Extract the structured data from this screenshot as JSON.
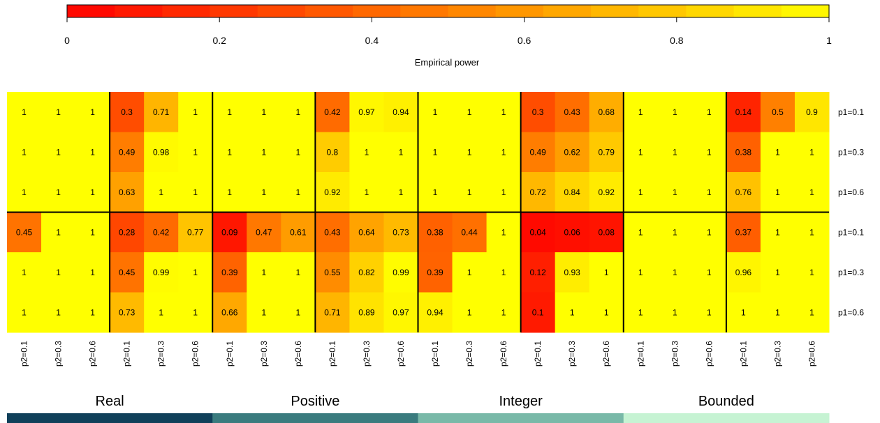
{
  "chart_data": {
    "type": "heatmap",
    "colorbar": {
      "label": "Empirical power",
      "ticks": [
        "0",
        "0.2",
        "0.4",
        "0.6",
        "0.8",
        "1"
      ],
      "range": [
        0,
        1
      ],
      "colors": [
        "#ff0000",
        "#ffff00"
      ]
    },
    "row_labels": [
      "p1=0.1",
      "p1=0.3",
      "p1=0.6",
      "p1=0.1",
      "p1=0.3",
      "p1=0.6"
    ],
    "column_labels": [
      "p2=0.1",
      "p2=0.3",
      "p2=0.6",
      "p2=0.1",
      "p2=0.3",
      "p2=0.6",
      "p2=0.1",
      "p2=0.3",
      "p2=0.6",
      "p2=0.1",
      "p2=0.3",
      "p2=0.6",
      "p2=0.1",
      "p2=0.3",
      "p2=0.6",
      "p2=0.1",
      "p2=0.3",
      "p2=0.6",
      "p2=0.1",
      "p2=0.3",
      "p2=0.6",
      "p2=0.1",
      "p2=0.3",
      "p2=0.6"
    ],
    "groups": [
      {
        "label": "Real",
        "color": "#10405a"
      },
      {
        "label": "Positive",
        "color": "#3a7b7e"
      },
      {
        "label": "Integer",
        "color": "#79b9a8"
      },
      {
        "label": "Bounded",
        "color": "#c6f3d3"
      }
    ],
    "values": [
      [
        1,
        1,
        1,
        0.3,
        0.71,
        1,
        1,
        1,
        1,
        0.42,
        0.97,
        0.94,
        1,
        1,
        1,
        0.3,
        0.43,
        0.68,
        1,
        1,
        1,
        0.14,
        0.5,
        0.9
      ],
      [
        1,
        1,
        1,
        0.49,
        0.98,
        1,
        1,
        1,
        1,
        0.8,
        1,
        1,
        1,
        1,
        1,
        0.49,
        0.62,
        0.79,
        1,
        1,
        1,
        0.38,
        1,
        1
      ],
      [
        1,
        1,
        1,
        0.63,
        1,
        1,
        1,
        1,
        1,
        0.92,
        1,
        1,
        1,
        1,
        1,
        0.72,
        0.84,
        0.92,
        1,
        1,
        1,
        0.76,
        1,
        1
      ],
      [
        0.45,
        1,
        1,
        0.28,
        0.42,
        0.77,
        0.09,
        0.47,
        0.61,
        0.43,
        0.64,
        0.73,
        0.38,
        0.44,
        1,
        0.04,
        0.06,
        0.08,
        1,
        1,
        1,
        0.37,
        1,
        1
      ],
      [
        1,
        1,
        1,
        0.45,
        0.99,
        1,
        0.39,
        1,
        1,
        0.55,
        0.82,
        0.99,
        0.39,
        1,
        1,
        0.12,
        0.93,
        1,
        1,
        1,
        1,
        0.96,
        1,
        1
      ],
      [
        1,
        1,
        1,
        0.73,
        1,
        1,
        0.66,
        1,
        1,
        0.71,
        0.89,
        0.97,
        0.94,
        1,
        1,
        0.1,
        1,
        1,
        1,
        1,
        1,
        1,
        1,
        1
      ]
    ]
  }
}
